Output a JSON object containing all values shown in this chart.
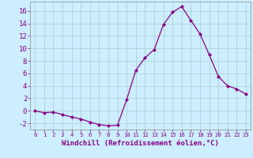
{
  "x": [
    0,
    1,
    2,
    3,
    4,
    5,
    6,
    7,
    8,
    9,
    10,
    11,
    12,
    13,
    14,
    15,
    16,
    17,
    18,
    19,
    20,
    21,
    22,
    23
  ],
  "y": [
    0.0,
    -0.3,
    -0.2,
    -0.6,
    -1.0,
    -1.3,
    -1.8,
    -2.2,
    -2.4,
    -2.3,
    1.8,
    6.5,
    8.5,
    9.8,
    13.8,
    15.8,
    16.7,
    14.5,
    12.3,
    9.0,
    5.5,
    4.0,
    3.5,
    2.7
  ],
  "xlim": [
    -0.5,
    23.5
  ],
  "ylim": [
    -3.0,
    17.5
  ],
  "yticks": [
    -2,
    0,
    2,
    4,
    6,
    8,
    10,
    12,
    14,
    16
  ],
  "xticks": [
    0,
    1,
    2,
    3,
    4,
    5,
    6,
    7,
    8,
    9,
    10,
    11,
    12,
    13,
    14,
    15,
    16,
    17,
    18,
    19,
    20,
    21,
    22,
    23
  ],
  "xlabel": "Windchill (Refroidissement éolien,°C)",
  "line_color": "#880088",
  "marker": "D",
  "markersize": 2.0,
  "linewidth": 0.9,
  "bg_color": "#cceeff",
  "grid_color": "#aacccc",
  "spine_color": "#888888",
  "tick_color": "#880088",
  "label_color": "#880088",
  "xlabel_fontsize": 6.5,
  "ytick_fontsize": 6.5,
  "xtick_fontsize": 5.2
}
